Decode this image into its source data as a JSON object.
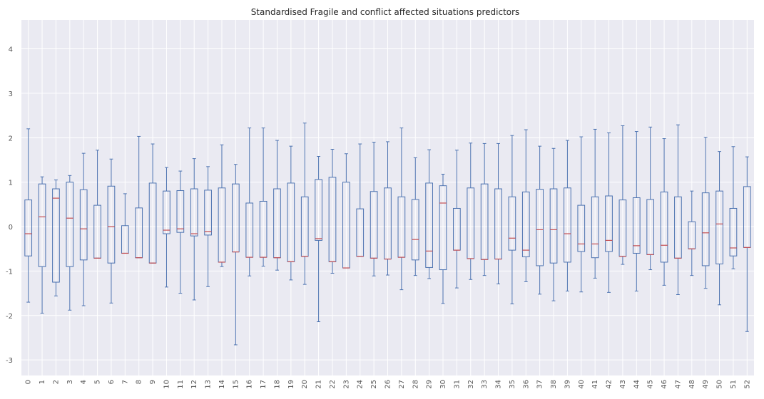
{
  "chart_data": {
    "type": "box",
    "title": "Standardised Fragile and conflict affected situations predictors",
    "xlabel": "",
    "ylabel": "",
    "ylim": [
      -3.35,
      4.65
    ],
    "yticks": [
      -3,
      -2,
      -1,
      0,
      1,
      2,
      3,
      4
    ],
    "grid": true,
    "colors": {
      "background": "#eaeaf2",
      "grid": "#ffffff",
      "box": "#4c72b0",
      "median": "#c44e52"
    },
    "categories": [
      "0",
      "1",
      "2",
      "3",
      "4",
      "5",
      "6",
      "7",
      "8",
      "9",
      "10",
      "11",
      "12",
      "13",
      "14",
      "15",
      "16",
      "17",
      "18",
      "19",
      "20",
      "21",
      "22",
      "23",
      "24",
      "25",
      "26",
      "27",
      "28",
      "29",
      "30",
      "31",
      "32",
      "33",
      "34",
      "35",
      "36",
      "37",
      "38",
      "39",
      "40",
      "41",
      "42",
      "43",
      "44",
      "45",
      "46",
      "47",
      "48",
      "49",
      "50",
      "51",
      "52"
    ],
    "boxes": [
      {
        "whislo": -1.7,
        "q1": -0.66,
        "med": -0.16,
        "q3": 0.6,
        "whishi": 2.2
      },
      {
        "whislo": -1.95,
        "q1": -0.9,
        "med": 0.22,
        "q3": 0.96,
        "whishi": 1.12
      },
      {
        "whislo": -1.56,
        "q1": -1.25,
        "med": 0.64,
        "q3": 0.85,
        "whishi": 1.05
      },
      {
        "whislo": -1.88,
        "q1": -0.9,
        "med": 0.19,
        "q3": 1.0,
        "whishi": 1.15
      },
      {
        "whislo": -1.78,
        "q1": -0.75,
        "med": -0.05,
        "q3": 0.83,
        "whishi": 1.65
      },
      {
        "whislo": -0.71,
        "q1": -0.71,
        "med": -0.71,
        "q3": 0.48,
        "whishi": 1.72
      },
      {
        "whislo": -1.72,
        "q1": -0.82,
        "med": 0.0,
        "q3": 0.91,
        "whishi": 1.52
      },
      {
        "whislo": -0.6,
        "q1": -0.6,
        "med": -0.6,
        "q3": 0.02,
        "whishi": 0.74
      },
      {
        "whislo": -0.7,
        "q1": -0.7,
        "med": -0.7,
        "q3": 0.42,
        "whishi": 2.03
      },
      {
        "whislo": -0.82,
        "q1": -0.82,
        "med": -0.82,
        "q3": 0.98,
        "whishi": 1.86
      },
      {
        "whislo": -1.36,
        "q1": -0.16,
        "med": -0.08,
        "q3": 0.8,
        "whishi": 1.33
      },
      {
        "whislo": -1.5,
        "q1": -0.13,
        "med": -0.05,
        "q3": 0.81,
        "whishi": 1.25
      },
      {
        "whislo": -1.65,
        "q1": -0.21,
        "med": -0.16,
        "q3": 0.85,
        "whishi": 1.53
      },
      {
        "whislo": -1.35,
        "q1": -0.19,
        "med": -0.11,
        "q3": 0.82,
        "whishi": 1.35
      },
      {
        "whislo": -0.9,
        "q1": -0.8,
        "med": -0.8,
        "q3": 0.87,
        "whishi": 1.84
      },
      {
        "whislo": -2.66,
        "q1": -0.57,
        "med": -0.57,
        "q3": 0.96,
        "whishi": 1.4
      },
      {
        "whislo": -1.11,
        "q1": -0.69,
        "med": -0.69,
        "q3": 0.53,
        "whishi": 2.22
      },
      {
        "whislo": -0.89,
        "q1": -0.69,
        "med": -0.69,
        "q3": 0.57,
        "whishi": 2.22
      },
      {
        "whislo": -0.98,
        "q1": -0.7,
        "med": -0.7,
        "q3": 0.85,
        "whishi": 1.94
      },
      {
        "whislo": -1.2,
        "q1": -0.79,
        "med": -0.79,
        "q3": 0.98,
        "whishi": 1.81
      },
      {
        "whislo": -1.3,
        "q1": -0.67,
        "med": -0.67,
        "q3": 0.67,
        "whishi": 2.33
      },
      {
        "whislo": -2.14,
        "q1": -0.31,
        "med": -0.27,
        "q3": 1.06,
        "whishi": 1.58
      },
      {
        "whislo": -1.05,
        "q1": -0.79,
        "med": -0.79,
        "q3": 1.11,
        "whishi": 1.74
      },
      {
        "whislo": -0.93,
        "q1": -0.93,
        "med": -0.93,
        "q3": 1.0,
        "whishi": 1.64
      },
      {
        "whislo": -0.67,
        "q1": -0.67,
        "med": -0.67,
        "q3": 0.4,
        "whishi": 1.86
      },
      {
        "whislo": -1.11,
        "q1": -0.71,
        "med": -0.71,
        "q3": 0.79,
        "whishi": 1.9
      },
      {
        "whislo": -1.09,
        "q1": -0.73,
        "med": -0.73,
        "q3": 0.87,
        "whishi": 1.91
      },
      {
        "whislo": -1.42,
        "q1": -0.69,
        "med": -0.69,
        "q3": 0.67,
        "whishi": 2.22
      },
      {
        "whislo": -1.1,
        "q1": -0.75,
        "med": -0.29,
        "q3": 0.61,
        "whishi": 1.55
      },
      {
        "whislo": -1.17,
        "q1": -0.92,
        "med": -0.55,
        "q3": 0.98,
        "whishi": 1.73
      },
      {
        "whislo": -1.73,
        "q1": -0.97,
        "med": 0.53,
        "q3": 0.92,
        "whishi": 1.18
      },
      {
        "whislo": -1.38,
        "q1": -0.53,
        "med": -0.53,
        "q3": 0.41,
        "whishi": 1.72
      },
      {
        "whislo": -1.19,
        "q1": -0.72,
        "med": -0.72,
        "q3": 0.87,
        "whishi": 1.88
      },
      {
        "whislo": -1.1,
        "q1": -0.74,
        "med": -0.74,
        "q3": 0.96,
        "whishi": 1.87
      },
      {
        "whislo": -1.29,
        "q1": -0.73,
        "med": -0.73,
        "q3": 0.85,
        "whishi": 1.87
      },
      {
        "whislo": -1.74,
        "q1": -0.53,
        "med": -0.26,
        "q3": 0.67,
        "whishi": 2.05
      },
      {
        "whislo": -1.24,
        "q1": -0.68,
        "med": -0.53,
        "q3": 0.78,
        "whishi": 2.18
      },
      {
        "whislo": -1.52,
        "q1": -0.88,
        "med": -0.07,
        "q3": 0.84,
        "whishi": 1.81
      },
      {
        "whislo": -1.67,
        "q1": -0.82,
        "med": -0.07,
        "q3": 0.85,
        "whishi": 1.76
      },
      {
        "whislo": -1.45,
        "q1": -0.8,
        "med": -0.16,
        "q3": 0.87,
        "whishi": 1.94
      },
      {
        "whislo": -1.47,
        "q1": -0.56,
        "med": -0.39,
        "q3": 0.48,
        "whishi": 2.02
      },
      {
        "whislo": -1.16,
        "q1": -0.7,
        "med": -0.39,
        "q3": 0.67,
        "whishi": 2.19
      },
      {
        "whislo": -1.48,
        "q1": -0.56,
        "med": -0.31,
        "q3": 0.69,
        "whishi": 2.11
      },
      {
        "whislo": -0.85,
        "q1": -0.67,
        "med": -0.67,
        "q3": 0.6,
        "whishi": 2.27
      },
      {
        "whislo": -1.45,
        "q1": -0.6,
        "med": -0.43,
        "q3": 0.65,
        "whishi": 2.14
      },
      {
        "whislo": -0.97,
        "q1": -0.63,
        "med": -0.63,
        "q3": 0.61,
        "whishi": 2.24
      },
      {
        "whislo": -1.32,
        "q1": -0.8,
        "med": -0.42,
        "q3": 0.78,
        "whishi": 1.98
      },
      {
        "whislo": -1.53,
        "q1": -0.71,
        "med": -0.71,
        "q3": 0.67,
        "whishi": 2.29
      },
      {
        "whislo": -1.1,
        "q1": -0.5,
        "med": -0.5,
        "q3": 0.11,
        "whishi": 0.8
      },
      {
        "whislo": -1.39,
        "q1": -0.88,
        "med": -0.14,
        "q3": 0.76,
        "whishi": 2.01
      },
      {
        "whislo": -1.76,
        "q1": -0.84,
        "med": 0.06,
        "q3": 0.8,
        "whishi": 1.69
      },
      {
        "whislo": -0.95,
        "q1": -0.66,
        "med": -0.48,
        "q3": 0.41,
        "whishi": 1.8
      },
      {
        "whislo": -2.36,
        "q1": -0.47,
        "med": -0.47,
        "q3": 0.9,
        "whishi": 1.57
      }
    ]
  }
}
